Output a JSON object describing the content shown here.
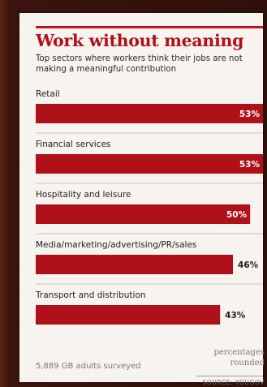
{
  "title": "Work without meaning",
  "subtitle": "Top sectors where workers think their jobs are not making a meaningful contribution",
  "footnote": "5,889 GB adults surveyed",
  "rounded_note": "percentages rounded",
  "source": "SOURCE: YOUGOV",
  "colors": {
    "bar": "#b0101a",
    "accent": "#c1121f"
  },
  "chart_data": {
    "type": "bar",
    "orientation": "horizontal",
    "categories": [
      "Retail",
      "Financial services",
      "Hospitality and leisure",
      "Media/marketing/advertising/PR/sales",
      "Transport and distribution"
    ],
    "values": [
      53,
      53,
      50,
      46,
      43
    ],
    "value_labels": [
      "53%",
      "53%",
      "50%",
      "46%",
      "43%"
    ],
    "unit": "%",
    "xlim": [
      0,
      53
    ]
  }
}
